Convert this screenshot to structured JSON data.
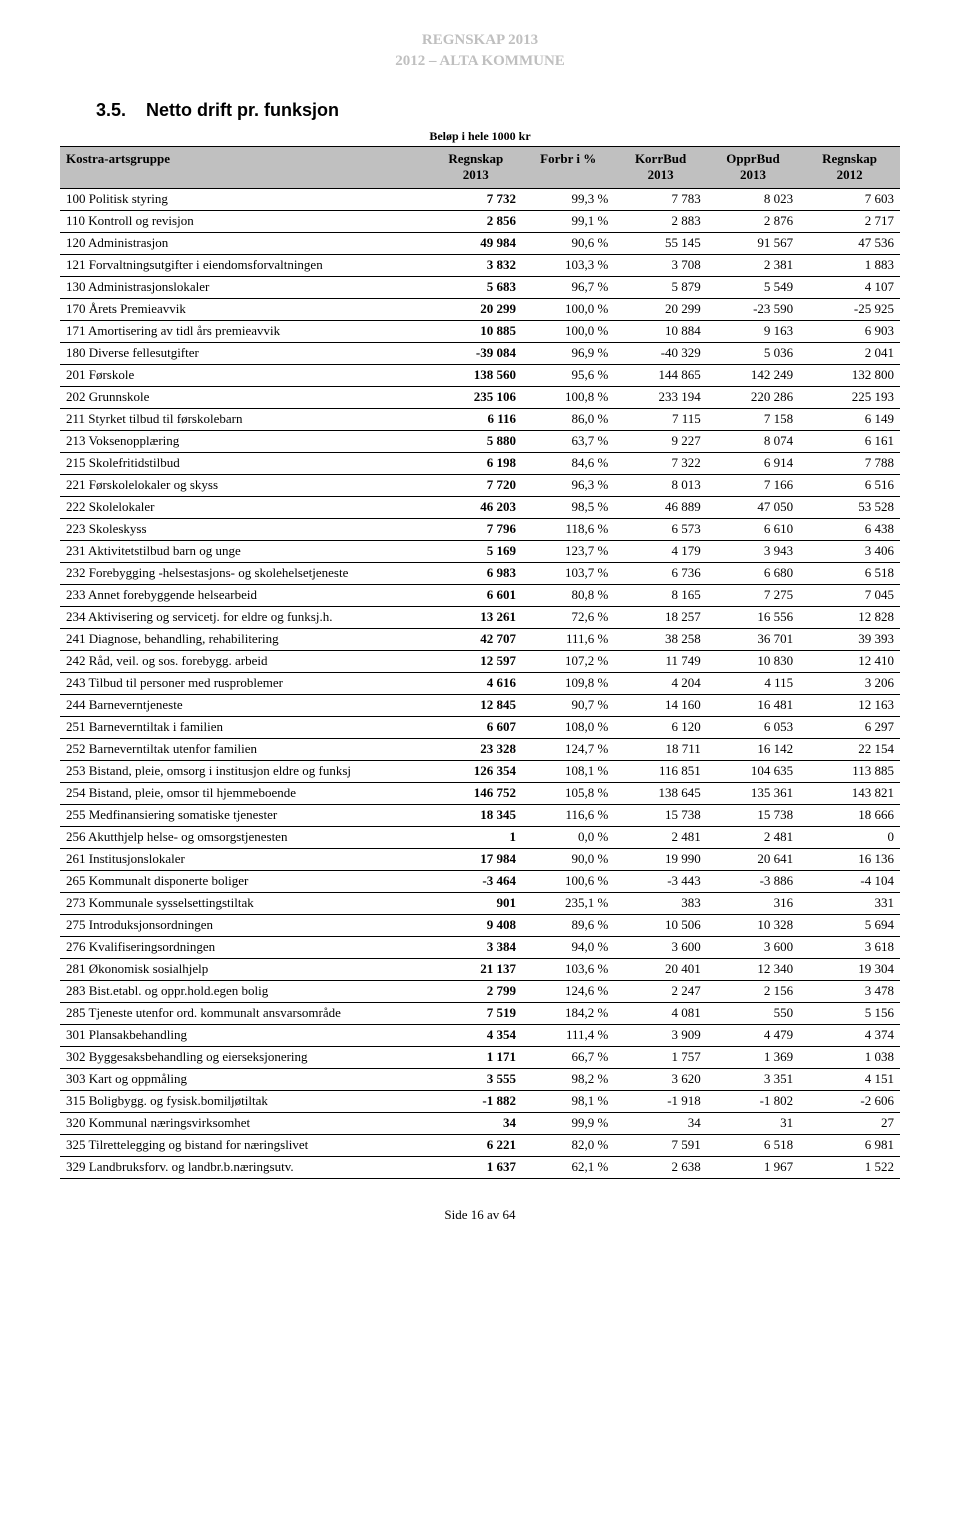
{
  "header": {
    "line1": "REGNSKAP 2013",
    "line2": "2012 – ALTA KOMMUNE",
    "color": "#bfbfbf"
  },
  "section": {
    "number": "3.5.",
    "title": "Netto drift pr. funksjon"
  },
  "caption": "Beløp i hele 1000 kr",
  "table": {
    "columns": [
      {
        "key": "label",
        "h1": "Kostra-artsgruppe",
        "h2": ""
      },
      {
        "key": "r1",
        "h1": "Regnskap",
        "h2": "2013"
      },
      {
        "key": "pct",
        "h1": "Forbr i %",
        "h2": ""
      },
      {
        "key": "kb",
        "h1": "KorrBud",
        "h2": "2013"
      },
      {
        "key": "ob",
        "h1": "OpprBud",
        "h2": "2013"
      },
      {
        "key": "r2",
        "h1": "Regnskap",
        "h2": "2012"
      }
    ],
    "rows": [
      [
        "100 Politisk styring",
        "7 732",
        "99,3 %",
        "7 783",
        "8 023",
        "7 603"
      ],
      [
        "110 Kontroll og revisjon",
        "2 856",
        "99,1 %",
        "2 883",
        "2 876",
        "2 717"
      ],
      [
        "120 Administrasjon",
        "49 984",
        "90,6 %",
        "55 145",
        "91 567",
        "47 536"
      ],
      [
        "121 Forvaltningsutgifter i eiendomsforvaltningen",
        "3 832",
        "103,3 %",
        "3 708",
        "2 381",
        "1 883"
      ],
      [
        "130 Administrasjonslokaler",
        "5 683",
        "96,7 %",
        "5 879",
        "5 549",
        "4 107"
      ],
      [
        "170 Årets Premieavvik",
        "20 299",
        "100,0 %",
        "20 299",
        "-23 590",
        "-25 925"
      ],
      [
        "171 Amortisering av tidl års premieavvik",
        "10 885",
        "100,0 %",
        "10 884",
        "9 163",
        "6 903"
      ],
      [
        "180 Diverse fellesutgifter",
        "-39 084",
        "96,9 %",
        "-40 329",
        "5 036",
        "2 041"
      ],
      [
        "201 Førskole",
        "138 560",
        "95,6 %",
        "144 865",
        "142 249",
        "132 800"
      ],
      [
        "202 Grunnskole",
        "235 106",
        "100,8 %",
        "233 194",
        "220 286",
        "225 193"
      ],
      [
        "211 Styrket tilbud til førskolebarn",
        "6 116",
        "86,0 %",
        "7 115",
        "7 158",
        "6 149"
      ],
      [
        "213 Voksenopplæring",
        "5 880",
        "63,7 %",
        "9 227",
        "8 074",
        "6 161"
      ],
      [
        "215 Skolefritidstilbud",
        "6 198",
        "84,6 %",
        "7 322",
        "6 914",
        "7 788"
      ],
      [
        "221 Førskolelokaler og skyss",
        "7 720",
        "96,3 %",
        "8 013",
        "7 166",
        "6 516"
      ],
      [
        "222 Skolelokaler",
        "46 203",
        "98,5 %",
        "46 889",
        "47 050",
        "53 528"
      ],
      [
        "223 Skoleskyss",
        "7 796",
        "118,6 %",
        "6 573",
        "6 610",
        "6 438"
      ],
      [
        "231 Aktivitetstilbud barn og unge",
        "5 169",
        "123,7 %",
        "4 179",
        "3 943",
        "3 406"
      ],
      [
        "232 Forebygging -helsestasjons- og skolehelsetjeneste",
        "6 983",
        "103,7 %",
        "6 736",
        "6 680",
        "6 518"
      ],
      [
        "233 Annet forebyggende helsearbeid",
        "6 601",
        "80,8 %",
        "8 165",
        "7 275",
        "7 045"
      ],
      [
        "234 Aktivisering og servicetj. for eldre og funksj.h.",
        "13 261",
        "72,6 %",
        "18 257",
        "16 556",
        "12 828"
      ],
      [
        "241 Diagnose, behandling, rehabilitering",
        "42 707",
        "111,6 %",
        "38 258",
        "36 701",
        "39 393"
      ],
      [
        "242 Råd, veil. og sos. forebygg. arbeid",
        "12 597",
        "107,2 %",
        "11 749",
        "10 830",
        "12 410"
      ],
      [
        "243 Tilbud til personer med rusproblemer",
        "4 616",
        "109,8 %",
        "4 204",
        "4 115",
        "3 206"
      ],
      [
        "244 Barneverntjeneste",
        "12 845",
        "90,7 %",
        "14 160",
        "16 481",
        "12 163"
      ],
      [
        "251 Barneverntiltak i familien",
        "6 607",
        "108,0 %",
        "6 120",
        "6 053",
        "6 297"
      ],
      [
        "252 Barneverntiltak utenfor familien",
        "23 328",
        "124,7 %",
        "18 711",
        "16 142",
        "22 154"
      ],
      [
        "253 Bistand, pleie, omsorg i institusjon eldre og funksj",
        "126 354",
        "108,1 %",
        "116 851",
        "104 635",
        "113 885"
      ],
      [
        "254 Bistand, pleie, omsor til hjemmeboende",
        "146 752",
        "105,8 %",
        "138 645",
        "135 361",
        "143 821"
      ],
      [
        "255 Medfinansiering somatiske tjenester",
        "18 345",
        "116,6 %",
        "15 738",
        "15 738",
        "18 666"
      ],
      [
        "256 Akutthjelp helse- og omsorgstjenesten",
        "1",
        "0,0 %",
        "2 481",
        "2 481",
        "0"
      ],
      [
        "261 Institusjonslokaler",
        "17 984",
        "90,0 %",
        "19 990",
        "20 641",
        "16 136"
      ],
      [
        "265 Kommunalt disponerte boliger",
        "-3 464",
        "100,6 %",
        "-3 443",
        "-3 886",
        "-4 104"
      ],
      [
        "273 Kommunale sysselsettingstiltak",
        "901",
        "235,1 %",
        "383",
        "316",
        "331"
      ],
      [
        "275 Introduksjonsordningen",
        "9 408",
        "89,6 %",
        "10 506",
        "10 328",
        "5 694"
      ],
      [
        "276 Kvalifiseringsordningen",
        "3 384",
        "94,0 %",
        "3 600",
        "3 600",
        "3 618"
      ],
      [
        "281 Økonomisk sosialhjelp",
        "21 137",
        "103,6 %",
        "20 401",
        "12 340",
        "19 304"
      ],
      [
        "283 Bist.etabl. og oppr.hold.egen bolig",
        "2 799",
        "124,6 %",
        "2 247",
        "2 156",
        "3 478"
      ],
      [
        "285 Tjeneste utenfor ord. kommunalt ansvarsområde",
        "7 519",
        "184,2 %",
        "4 081",
        "550",
        "5 156"
      ],
      [
        "301 Plansakbehandling",
        "4 354",
        "111,4 %",
        "3 909",
        "4 479",
        "4 374"
      ],
      [
        "302 Byggesaksbehandling  og  eierseksjonering",
        "1 171",
        "66,7 %",
        "1 757",
        "1 369",
        "1 038"
      ],
      [
        "303 Kart og oppmåling",
        "3 555",
        "98,2 %",
        "3 620",
        "3 351",
        "4 151"
      ],
      [
        "315 Boligbygg. og fysisk.bomiljøtiltak",
        "-1 882",
        "98,1 %",
        "-1 918",
        "-1 802",
        "-2 606"
      ],
      [
        "320 Kommunal næringsvirksomhet",
        "34",
        "99,9 %",
        "34",
        "31",
        "27"
      ],
      [
        "325 Tilrettelegging og bistand for næringslivet",
        "6 221",
        "82,0 %",
        "7 591",
        "6 518",
        "6 981"
      ],
      [
        "329 Landbruksforv. og landbr.b.næringsutv.",
        "1 637",
        "62,1 %",
        "2 638",
        "1 967",
        "1 522"
      ]
    ],
    "header_bg": "#c0c0c0",
    "border_color": "#000000",
    "font_size_pt": 10
  },
  "footer": "Side 16 av 64"
}
